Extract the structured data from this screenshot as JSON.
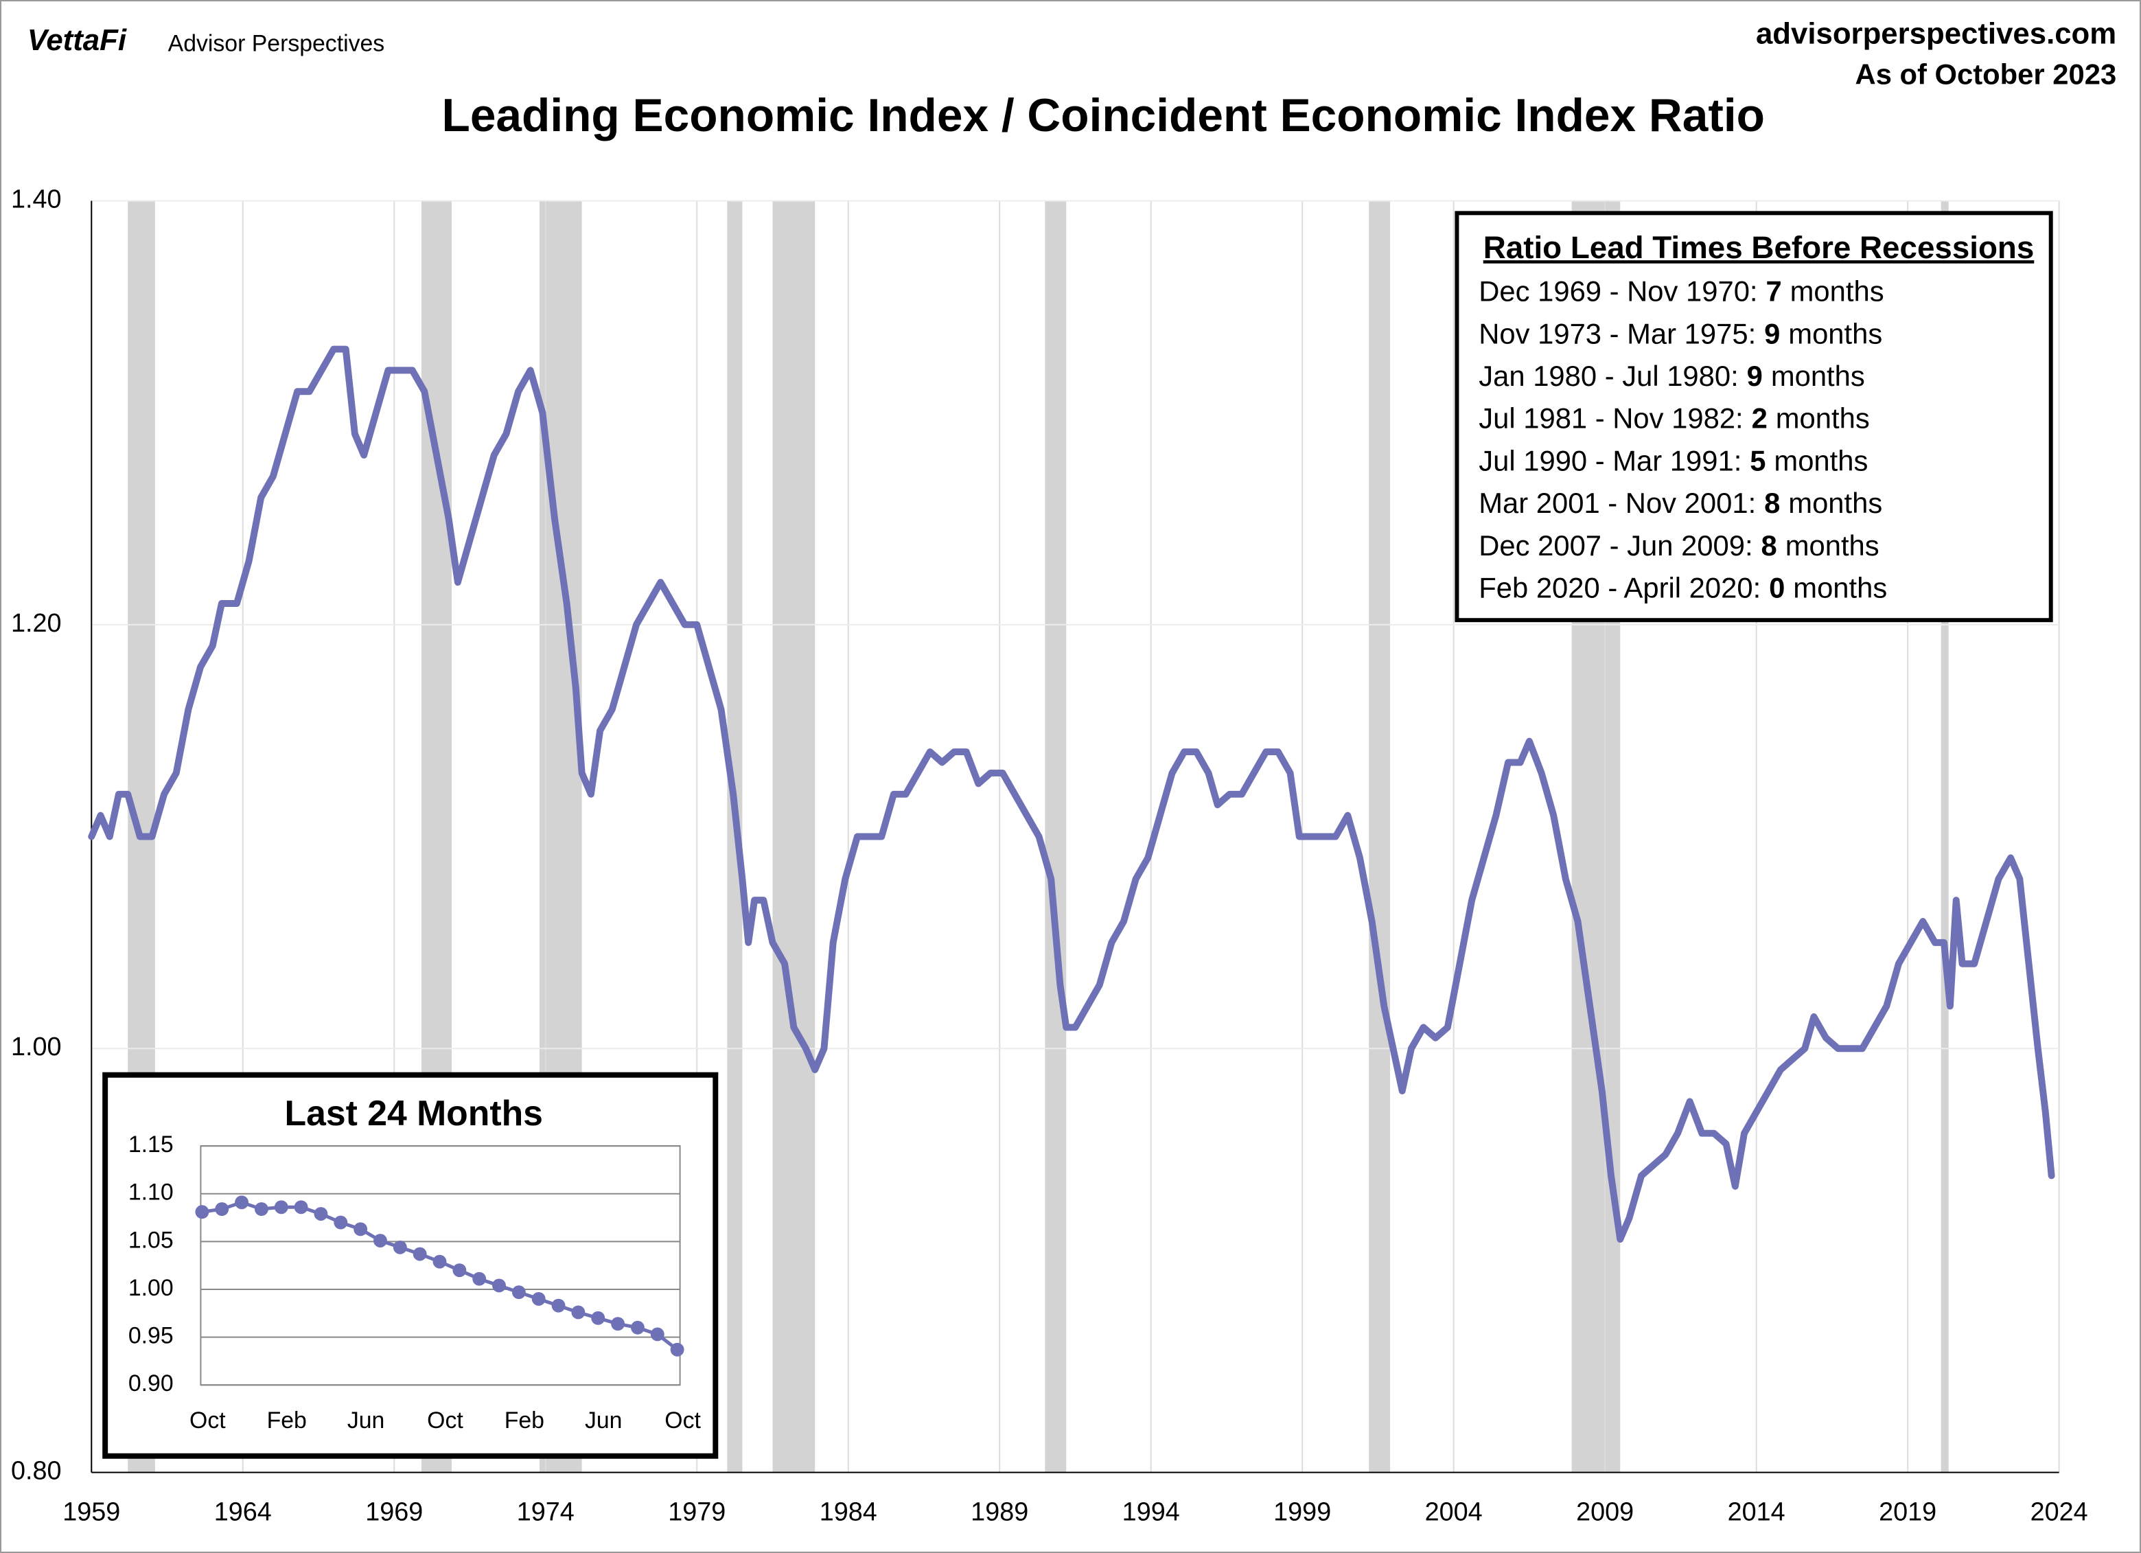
{
  "header": {
    "brand": "VettaFi",
    "brand_sub": "Advisor Perspectives",
    "site": "advisorperspectives.com",
    "as_of": "As of October 2023"
  },
  "lead_times": {
    "title": "Ratio Lead Times Before Recessions",
    "rows": [
      {
        "period": "Dec 1969 - Nov 1970:",
        "lead": 7,
        "unit": "months"
      },
      {
        "period": "Nov 1973 - Mar 1975:",
        "lead": 9,
        "unit": "months"
      },
      {
        "period": "Jan 1980 - Jul 1980:",
        "lead": 9,
        "unit": "months"
      },
      {
        "period": "Jul 1981 - Nov 1982:",
        "lead": 2,
        "unit": "months"
      },
      {
        "period": "Jul 1990 - Mar 1991:",
        "lead": 5,
        "unit": "months"
      },
      {
        "period": "Mar 2001 - Nov 2001:",
        "lead": 8,
        "unit": "months"
      },
      {
        "period": "Dec 2007 - Jun 2009:",
        "lead": 8,
        "unit": "months"
      },
      {
        "period": "Feb 2020 - April 2020:",
        "lead": 0,
        "unit": "months"
      }
    ]
  },
  "chart_data": [
    {
      "type": "line",
      "title": "Leading Economic Index / Coincident Economic Index Ratio",
      "x": [
        1959.0,
        1959.3,
        1959.6,
        1959.9,
        1960.2,
        1960.6,
        1961.0,
        1961.4,
        1961.8,
        1962.2,
        1962.6,
        1963.0,
        1963.3,
        1963.8,
        1964.2,
        1964.6,
        1965.0,
        1965.4,
        1965.8,
        1966.2,
        1966.6,
        1967.0,
        1967.4,
        1967.7,
        1968.0,
        1968.4,
        1968.8,
        1969.2,
        1969.6,
        1970.0,
        1970.4,
        1970.8,
        1971.1,
        1971.5,
        1971.9,
        1972.3,
        1972.7,
        1973.1,
        1973.5,
        1973.9,
        1974.3,
        1974.7,
        1975.0,
        1975.2,
        1975.5,
        1975.8,
        1976.2,
        1976.6,
        1977.0,
        1977.4,
        1977.8,
        1978.2,
        1978.6,
        1979.0,
        1979.4,
        1979.8,
        1980.2,
        1980.5,
        1980.7,
        1980.9,
        1981.2,
        1981.5,
        1981.9,
        1982.2,
        1982.6,
        1982.9,
        1983.2,
        1983.5,
        1983.9,
        1984.3,
        1984.7,
        1985.1,
        1985.5,
        1985.9,
        1986.3,
        1986.7,
        1987.1,
        1987.5,
        1987.9,
        1988.3,
        1988.7,
        1989.1,
        1989.5,
        1989.9,
        1990.3,
        1990.7,
        1991.0,
        1991.2,
        1991.5,
        1991.9,
        1992.3,
        1992.7,
        1993.1,
        1993.5,
        1993.9,
        1994.3,
        1994.7,
        1995.1,
        1995.5,
        1995.9,
        1996.2,
        1996.6,
        1997.0,
        1997.4,
        1997.8,
        1998.2,
        1998.6,
        1998.9,
        1999.3,
        1999.7,
        2000.1,
        2000.5,
        2000.9,
        2001.3,
        2001.7,
        2002.0,
        2002.3,
        2002.6,
        2003.0,
        2003.4,
        2003.8,
        2004.2,
        2004.6,
        2005.0,
        2005.4,
        2005.8,
        2006.2,
        2006.5,
        2006.9,
        2007.3,
        2007.7,
        2008.1,
        2008.5,
        2008.9,
        2009.2,
        2009.5,
        2009.8,
        2010.2,
        2010.6,
        2011.0,
        2011.4,
        2011.8,
        2012.2,
        2012.6,
        2013.0,
        2013.3,
        2013.6,
        2014.0,
        2014.4,
        2014.8,
        2015.2,
        2015.6,
        2015.9,
        2016.3,
        2016.7,
        2017.1,
        2017.5,
        2017.9,
        2018.3,
        2018.7,
        2019.1,
        2019.5,
        2019.9,
        2020.2,
        2020.4,
        2020.6,
        2020.8,
        2021.2,
        2021.6,
        2022.0,
        2022.4,
        2022.7,
        2023.0,
        2023.3,
        2023.55,
        2023.75
      ],
      "series": [
        {
          "color": "#6e71b6",
          "values": [
            1.1,
            1.11,
            1.1,
            1.12,
            1.12,
            1.1,
            1.1,
            1.12,
            1.13,
            1.16,
            1.18,
            1.19,
            1.21,
            1.21,
            1.23,
            1.26,
            1.27,
            1.29,
            1.31,
            1.31,
            1.32,
            1.33,
            1.33,
            1.29,
            1.28,
            1.3,
            1.32,
            1.32,
            1.32,
            1.31,
            1.28,
            1.25,
            1.22,
            1.24,
            1.26,
            1.28,
            1.29,
            1.31,
            1.32,
            1.3,
            1.25,
            1.21,
            1.17,
            1.13,
            1.12,
            1.15,
            1.16,
            1.18,
            1.2,
            1.21,
            1.22,
            1.21,
            1.2,
            1.2,
            1.18,
            1.16,
            1.12,
            1.08,
            1.05,
            1.07,
            1.07,
            1.05,
            1.04,
            1.01,
            1.0,
            0.99,
            1.0,
            1.05,
            1.08,
            1.1,
            1.1,
            1.1,
            1.12,
            1.12,
            1.13,
            1.14,
            1.135,
            1.14,
            1.14,
            1.125,
            1.13,
            1.13,
            1.12,
            1.11,
            1.1,
            1.08,
            1.03,
            1.01,
            1.01,
            1.02,
            1.03,
            1.05,
            1.06,
            1.08,
            1.09,
            1.11,
            1.13,
            1.14,
            1.14,
            1.13,
            1.115,
            1.12,
            1.12,
            1.13,
            1.14,
            1.14,
            1.13,
            1.1,
            1.1,
            1.1,
            1.1,
            1.11,
            1.09,
            1.06,
            1.02,
            1.0,
            0.98,
            1.0,
            1.01,
            1.005,
            1.01,
            1.04,
            1.07,
            1.09,
            1.11,
            1.135,
            1.135,
            1.145,
            1.13,
            1.11,
            1.08,
            1.06,
            1.02,
            0.98,
            0.94,
            0.91,
            0.92,
            0.94,
            0.945,
            0.95,
            0.96,
            0.975,
            0.96,
            0.96,
            0.955,
            0.935,
            0.96,
            0.97,
            0.98,
            0.99,
            0.995,
            1.0,
            1.015,
            1.005,
            1.0,
            1.0,
            1.0,
            1.01,
            1.02,
            1.04,
            1.05,
            1.06,
            1.05,
            1.05,
            1.02,
            1.07,
            1.04,
            1.04,
            1.06,
            1.08,
            1.09,
            1.08,
            1.04,
            1.0,
            0.97,
            0.94
          ]
        }
      ],
      "recessions": [
        {
          "start": 1960.2,
          "end": 1961.1
        },
        {
          "start": 1969.9,
          "end": 1970.9
        },
        {
          "start": 1973.8,
          "end": 1975.2
        },
        {
          "start": 1980.0,
          "end": 1980.5
        },
        {
          "start": 1981.5,
          "end": 1982.9
        },
        {
          "start": 1990.5,
          "end": 1991.2
        },
        {
          "start": 2001.2,
          "end": 2001.9
        },
        {
          "start": 2007.9,
          "end": 2009.5
        },
        {
          "start": 2020.1,
          "end": 2020.35
        }
      ],
      "recession_color": "#d3d3d3",
      "xlim": [
        1959,
        2024
      ],
      "xticks": [
        1959,
        1964,
        1969,
        1974,
        1979,
        1984,
        1989,
        1994,
        1999,
        2004,
        2009,
        2014,
        2019,
        2024
      ],
      "ylim": [
        0.8,
        1.4
      ],
      "yticks": [
        {
          "value": 0.8,
          "label": "0.80"
        },
        {
          "value": 1.0,
          "label": "1.00"
        },
        {
          "value": 1.2,
          "label": "1.20"
        },
        {
          "value": 1.4,
          "label": "1.40"
        }
      ],
      "grid": true
    },
    {
      "type": "line",
      "title": "Last 24 Months",
      "categories": [
        "Oct",
        null,
        null,
        null,
        "Feb",
        null,
        null,
        null,
        "Jun",
        null,
        null,
        null,
        "Oct",
        null,
        null,
        null,
        "Feb",
        null,
        null,
        null,
        "Jun",
        null,
        null,
        null,
        "Oct"
      ],
      "series": [
        {
          "color": "#6e71b6",
          "values": [
            1.081,
            1.084,
            1.091,
            1.084,
            1.086,
            1.086,
            1.079,
            1.07,
            1.063,
            1.051,
            1.044,
            1.037,
            1.029,
            1.02,
            1.011,
            1.004,
            0.997,
            0.99,
            0.983,
            0.976,
            0.97,
            0.964,
            0.96,
            0.953,
            0.937
          ]
        }
      ],
      "ylim": [
        0.9,
        1.15
      ],
      "yticks": [
        {
          "value": 0.9,
          "label": "0.90"
        },
        {
          "value": 0.95,
          "label": "0.95"
        },
        {
          "value": 1.0,
          "label": "1.00"
        },
        {
          "value": 1.05,
          "label": "1.05"
        },
        {
          "value": 1.1,
          "label": "1.10"
        },
        {
          "value": 1.15,
          "label": "1.15"
        }
      ],
      "grid": true
    }
  ]
}
